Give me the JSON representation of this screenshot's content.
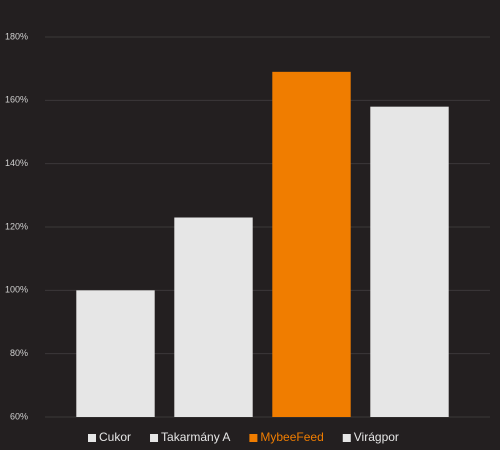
{
  "chart_data": {
    "type": "bar",
    "categories": [
      "Cukor",
      "Takarmány A",
      "MybeeFeed",
      "Virágpor"
    ],
    "values": [
      100,
      123,
      169,
      158
    ],
    "colors": [
      "#e6e6e6",
      "#e6e6e6",
      "#f07d00",
      "#e6e6e6"
    ],
    "ylim": [
      60,
      180
    ],
    "yticks": [
      {
        "value": 60,
        "label": "60%"
      },
      {
        "value": 80,
        "label": "80%"
      },
      {
        "value": 100,
        "label": "100%"
      },
      {
        "value": 120,
        "label": "120%"
      },
      {
        "value": 140,
        "label": "140%"
      },
      {
        "value": 160,
        "label": "160%"
      },
      {
        "value": 180,
        "label": "180%"
      }
    ],
    "grid": true,
    "legend": "bottom"
  }
}
